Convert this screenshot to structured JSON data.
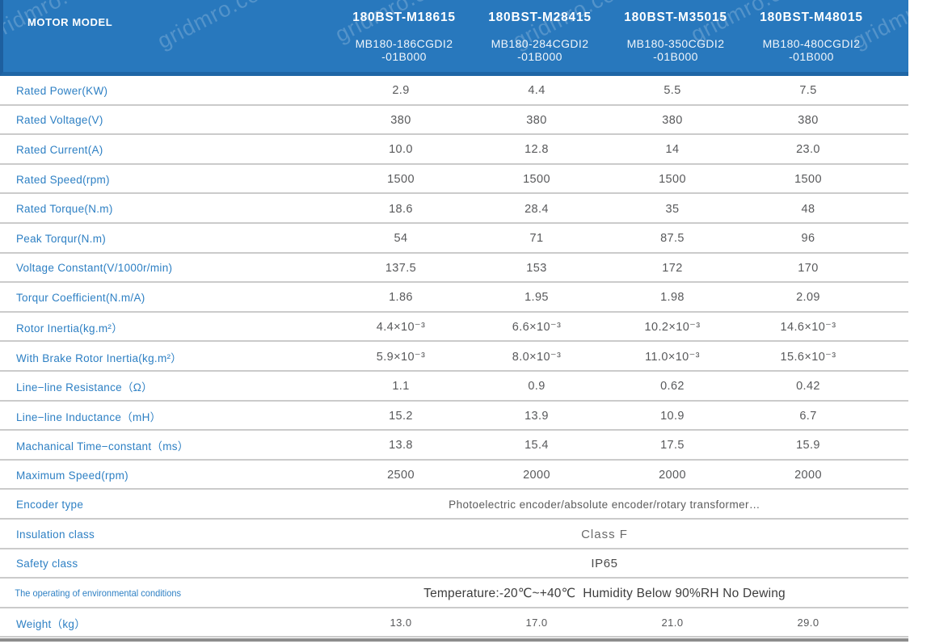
{
  "watermark_text": "gridmro.com",
  "colors": {
    "header_bg": "#2878BD",
    "header_border": "#1D5F9F",
    "header_border2": "#1F66A6",
    "label_text": "#2E80C4",
    "value_text": "#58595B",
    "row_line": "#CBCBCB",
    "bottom_bar": "#8D8D8D"
  },
  "header": {
    "label": "MOTOR MODEL",
    "models": [
      {
        "name": "180BST-M18615",
        "code": "MB180-186CGDI2",
        "code2": "-01B000"
      },
      {
        "name": "180BST-M28415",
        "code": "MB180-284CGDI2",
        "code2": "-01B000"
      },
      {
        "name": "180BST-M35015",
        "code": "MB180-350CGDI2",
        "code2": "-01B000"
      },
      {
        "name": "180BST-M48015",
        "code": "MB180-480CGDI2",
        "code2": "-01B000"
      }
    ]
  },
  "rows": [
    {
      "label": "Rated Power(KW)",
      "values": [
        "2.9",
        "4.4",
        "5.5",
        "7.5"
      ]
    },
    {
      "label": "Rated Voltage(V)",
      "values": [
        "380",
        "380",
        "380",
        "380"
      ]
    },
    {
      "label": "Rated Current(A)",
      "values": [
        "10.0",
        "12.8",
        "14",
        "23.0"
      ]
    },
    {
      "label": "Rated Speed(rpm)",
      "values": [
        "1500",
        "1500",
        "1500",
        "1500"
      ]
    },
    {
      "label": "Rated Torque(N.m)",
      "values": [
        "18.6",
        "28.4",
        "35",
        "48"
      ]
    },
    {
      "label": "Peak Torqur(N.m)",
      "values": [
        "54",
        "71",
        "87.5",
        "96"
      ]
    },
    {
      "label": "Voltage Constant(V/1000r/min)",
      "values": [
        "137.5",
        "153",
        "172",
        "170"
      ]
    },
    {
      "label": "Torqur Coefficient(N.m/A)",
      "values": [
        "1.86",
        "1.95",
        "1.98",
        "2.09"
      ]
    },
    {
      "label": "Rotor Inertia(kg.m²）",
      "values": [
        "4.4×10⁻³",
        "6.6×10⁻³",
        "10.2×10⁻³",
        "14.6×10⁻³"
      ]
    },
    {
      "label": "With Brake Rotor Inertia(kg.m²）",
      "values": [
        "5.9×10⁻³",
        "8.0×10⁻³",
        "11.0×10⁻³",
        "15.6×10⁻³"
      ]
    },
    {
      "label": "Line−line Resistance（Ω）",
      "values": [
        "1.1",
        "0.9",
        "0.62",
        "0.42"
      ]
    },
    {
      "label": "Line−line Inductance（mH）",
      "values": [
        "15.2",
        "13.9",
        "10.9",
        "6.7"
      ]
    },
    {
      "label": "Machanical Time−constant（ms）",
      "values": [
        "13.8",
        "15.4",
        "17.5",
        "15.9"
      ]
    },
    {
      "label": "Maximum Speed(rpm)",
      "values": [
        "2500",
        "2000",
        "2000",
        "2000"
      ]
    },
    {
      "label": "Encoder type",
      "span_text": "Photoelectric encoder/absolute encoder/rotary transformer…"
    },
    {
      "label": "Insulation class",
      "span_text": "Class F"
    },
    {
      "label": "Safety class",
      "span_text": "IP65"
    },
    {
      "label": "The operating of environmental conditions",
      "small_label": true,
      "span_text": "Temperature:-20℃~+40℃  Humidity Below 90%RH No Dewing"
    },
    {
      "label": "Weight（kg）",
      "values": [
        "13.0",
        "17.0",
        "21.0",
        "29.0"
      ]
    }
  ]
}
